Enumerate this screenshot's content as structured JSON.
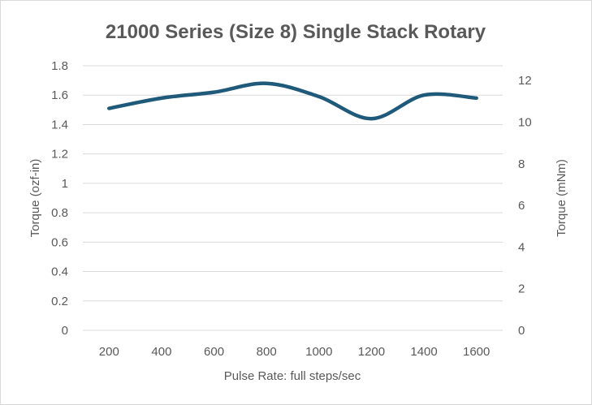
{
  "chart_data": {
    "type": "line",
    "title": "21000 Series (Size 8) Single Stack Rotary",
    "xlabel": "Pulse Rate:  full steps/sec",
    "ylabel": "Torque (ozf-in)",
    "y2label": "Torque (mNm)",
    "categories": [
      "200",
      "400",
      "600",
      "800",
      "1000",
      "1200",
      "1400",
      "1600"
    ],
    "series": [
      {
        "name": "Torque",
        "values": [
          1.51,
          1.58,
          1.62,
          1.68,
          1.59,
          1.44,
          1.6,
          1.58
        ],
        "color": "#1f5a7a"
      }
    ],
    "ylim": [
      0,
      1.8
    ],
    "yticks": [
      "0",
      "0.2",
      "0.4",
      "0.6",
      "0.8",
      "1",
      "1.2",
      "1.4",
      "1.6",
      "1.8"
    ],
    "y2lim": [
      0,
      12.71
    ],
    "y2ticks": [
      "0",
      "2",
      "4",
      "6",
      "8",
      "10",
      "12"
    ],
    "grid": true,
    "smooth": true
  }
}
